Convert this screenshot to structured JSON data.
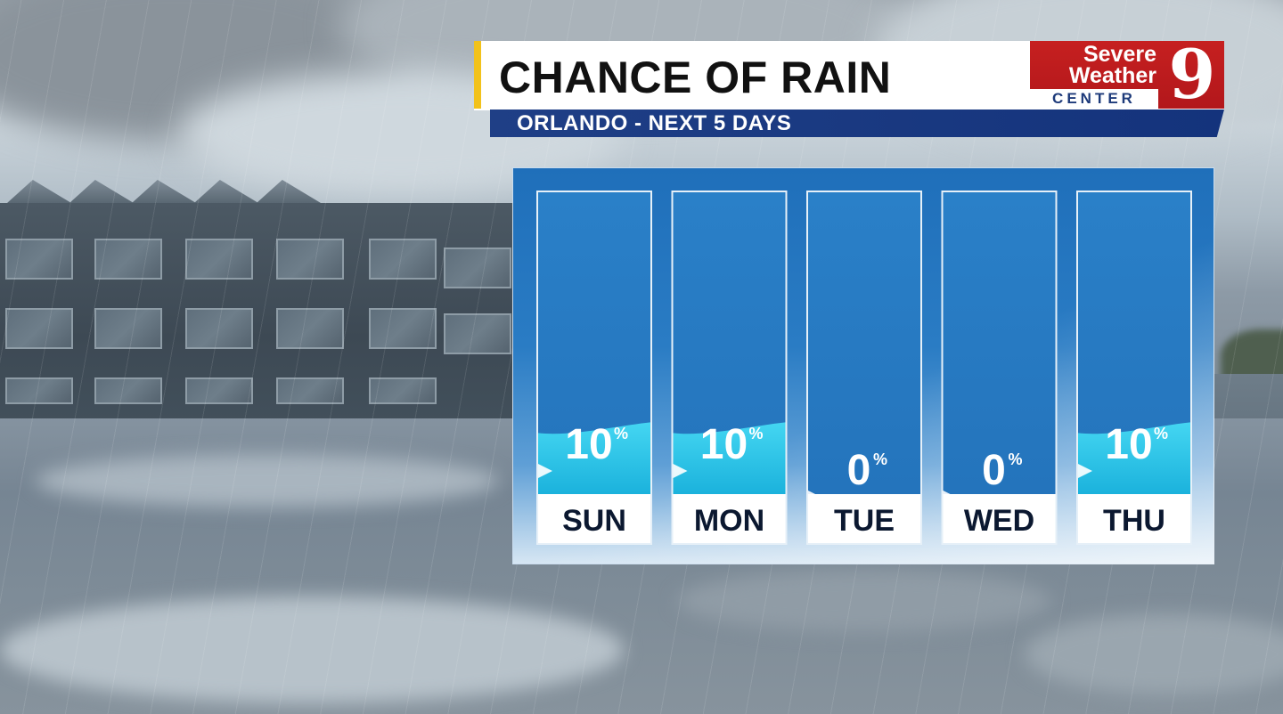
{
  "header": {
    "title": "CHANCE OF RAIN",
    "subtitle": "ORLANDO - NEXT 5 DAYS"
  },
  "logo": {
    "line1": "Severe",
    "line2": "Weather",
    "line3": "CENTER",
    "channel": "9"
  },
  "colors": {
    "accent": "#f2c21b",
    "brand_red": "#c62020",
    "brand_blue": "#1f3f86",
    "bar_blue": "#2c7cc1",
    "water": "#2ec6e8"
  },
  "chart_data": {
    "type": "bar",
    "categories": [
      "SUN",
      "MON",
      "TUE",
      "WED",
      "THU"
    ],
    "values": [
      10,
      10,
      0,
      0,
      10
    ],
    "value_labels": [
      "10",
      "10",
      "0",
      "0",
      "10"
    ],
    "unit": "%",
    "ylim": [
      0,
      100
    ],
    "grid": false,
    "legend": "none"
  }
}
